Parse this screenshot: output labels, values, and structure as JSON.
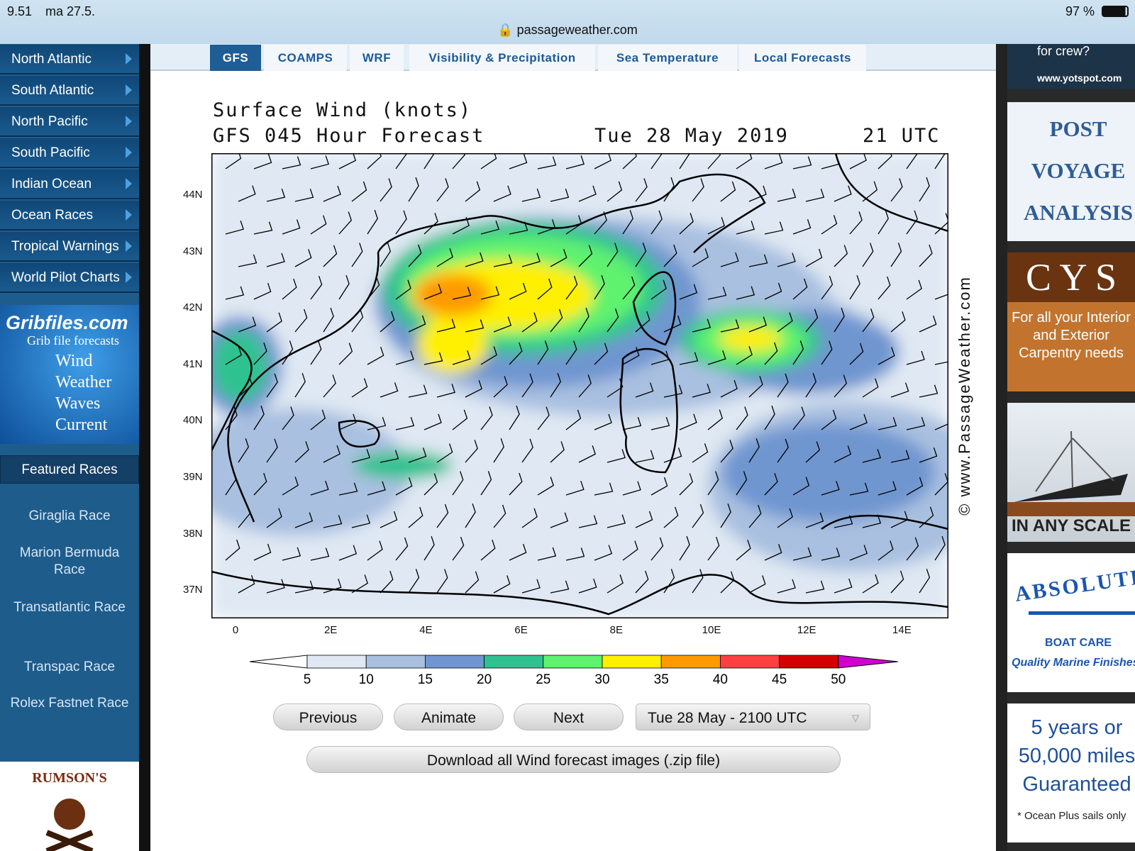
{
  "status": {
    "time": "9.51",
    "date": "ma 27.5.",
    "battery": "97 %",
    "url": "passageweather.com"
  },
  "sidebar": {
    "nav": [
      "North Atlantic",
      "South Atlantic",
      "North Pacific",
      "South Pacific",
      "Indian Ocean",
      "Ocean Races",
      "Tropical Warnings",
      "World Pilot Charts"
    ],
    "grib": {
      "brand": "Gribfiles.com",
      "tagline": "Grib file forecasts",
      "items": [
        "Wind",
        "Weather",
        "Waves",
        "Current"
      ]
    },
    "featured": {
      "heading": "Featured Races",
      "items": [
        "Giraglia Race",
        "Marion Bermuda Race",
        "Transatlantic Race",
        "Transpac Race",
        "Rolex Fastnet Race"
      ]
    },
    "ad": "RUMSON'S"
  },
  "tabs": [
    "GFS",
    "COAMPS",
    "WRF",
    "Visibility & Precipitation",
    "Sea Temperature",
    "Local Forecasts"
  ],
  "map": {
    "title": "Surface Wind (knots)",
    "subtitle": "GFS 045 Hour Forecast",
    "date": "Tue 28 May 2019",
    "time": "21 UTC",
    "lat_labels": [
      "44N",
      "43N",
      "42N",
      "41N",
      "40N",
      "39N",
      "38N",
      "37N"
    ],
    "lon_labels": [
      "0",
      "2E",
      "4E",
      "6E",
      "8E",
      "10E",
      "12E",
      "14E"
    ],
    "watermark": "© www.PassageWeather.com",
    "scale_labels": [
      "5",
      "10",
      "15",
      "20",
      "25",
      "30",
      "35",
      "40",
      "45",
      "50"
    ]
  },
  "controls": {
    "previous": "Previous",
    "animate": "Animate",
    "next": "Next",
    "select": "Tue 28 May - 2100 UTC",
    "download": "Download all Wind forecast images (.zip file)"
  },
  "ads": {
    "crew": "for crew?",
    "yotspot": "www.yotspot.com",
    "post": [
      "POST",
      "VOYAGE",
      "ANALYSIS"
    ],
    "cys": "C Y S",
    "cys_text": "For all your Interior and Exterior Carpentry needs",
    "scale": "IN ANY SCALE",
    "absolute": "ABSOLUTE",
    "boatcare": "BOAT CARE",
    "finishes": "Quality Marine Finishes",
    "sails": [
      "5 years or",
      "50,000 miles",
      "Guaranteed"
    ],
    "sails_note": "* Ocean Plus sails only"
  }
}
